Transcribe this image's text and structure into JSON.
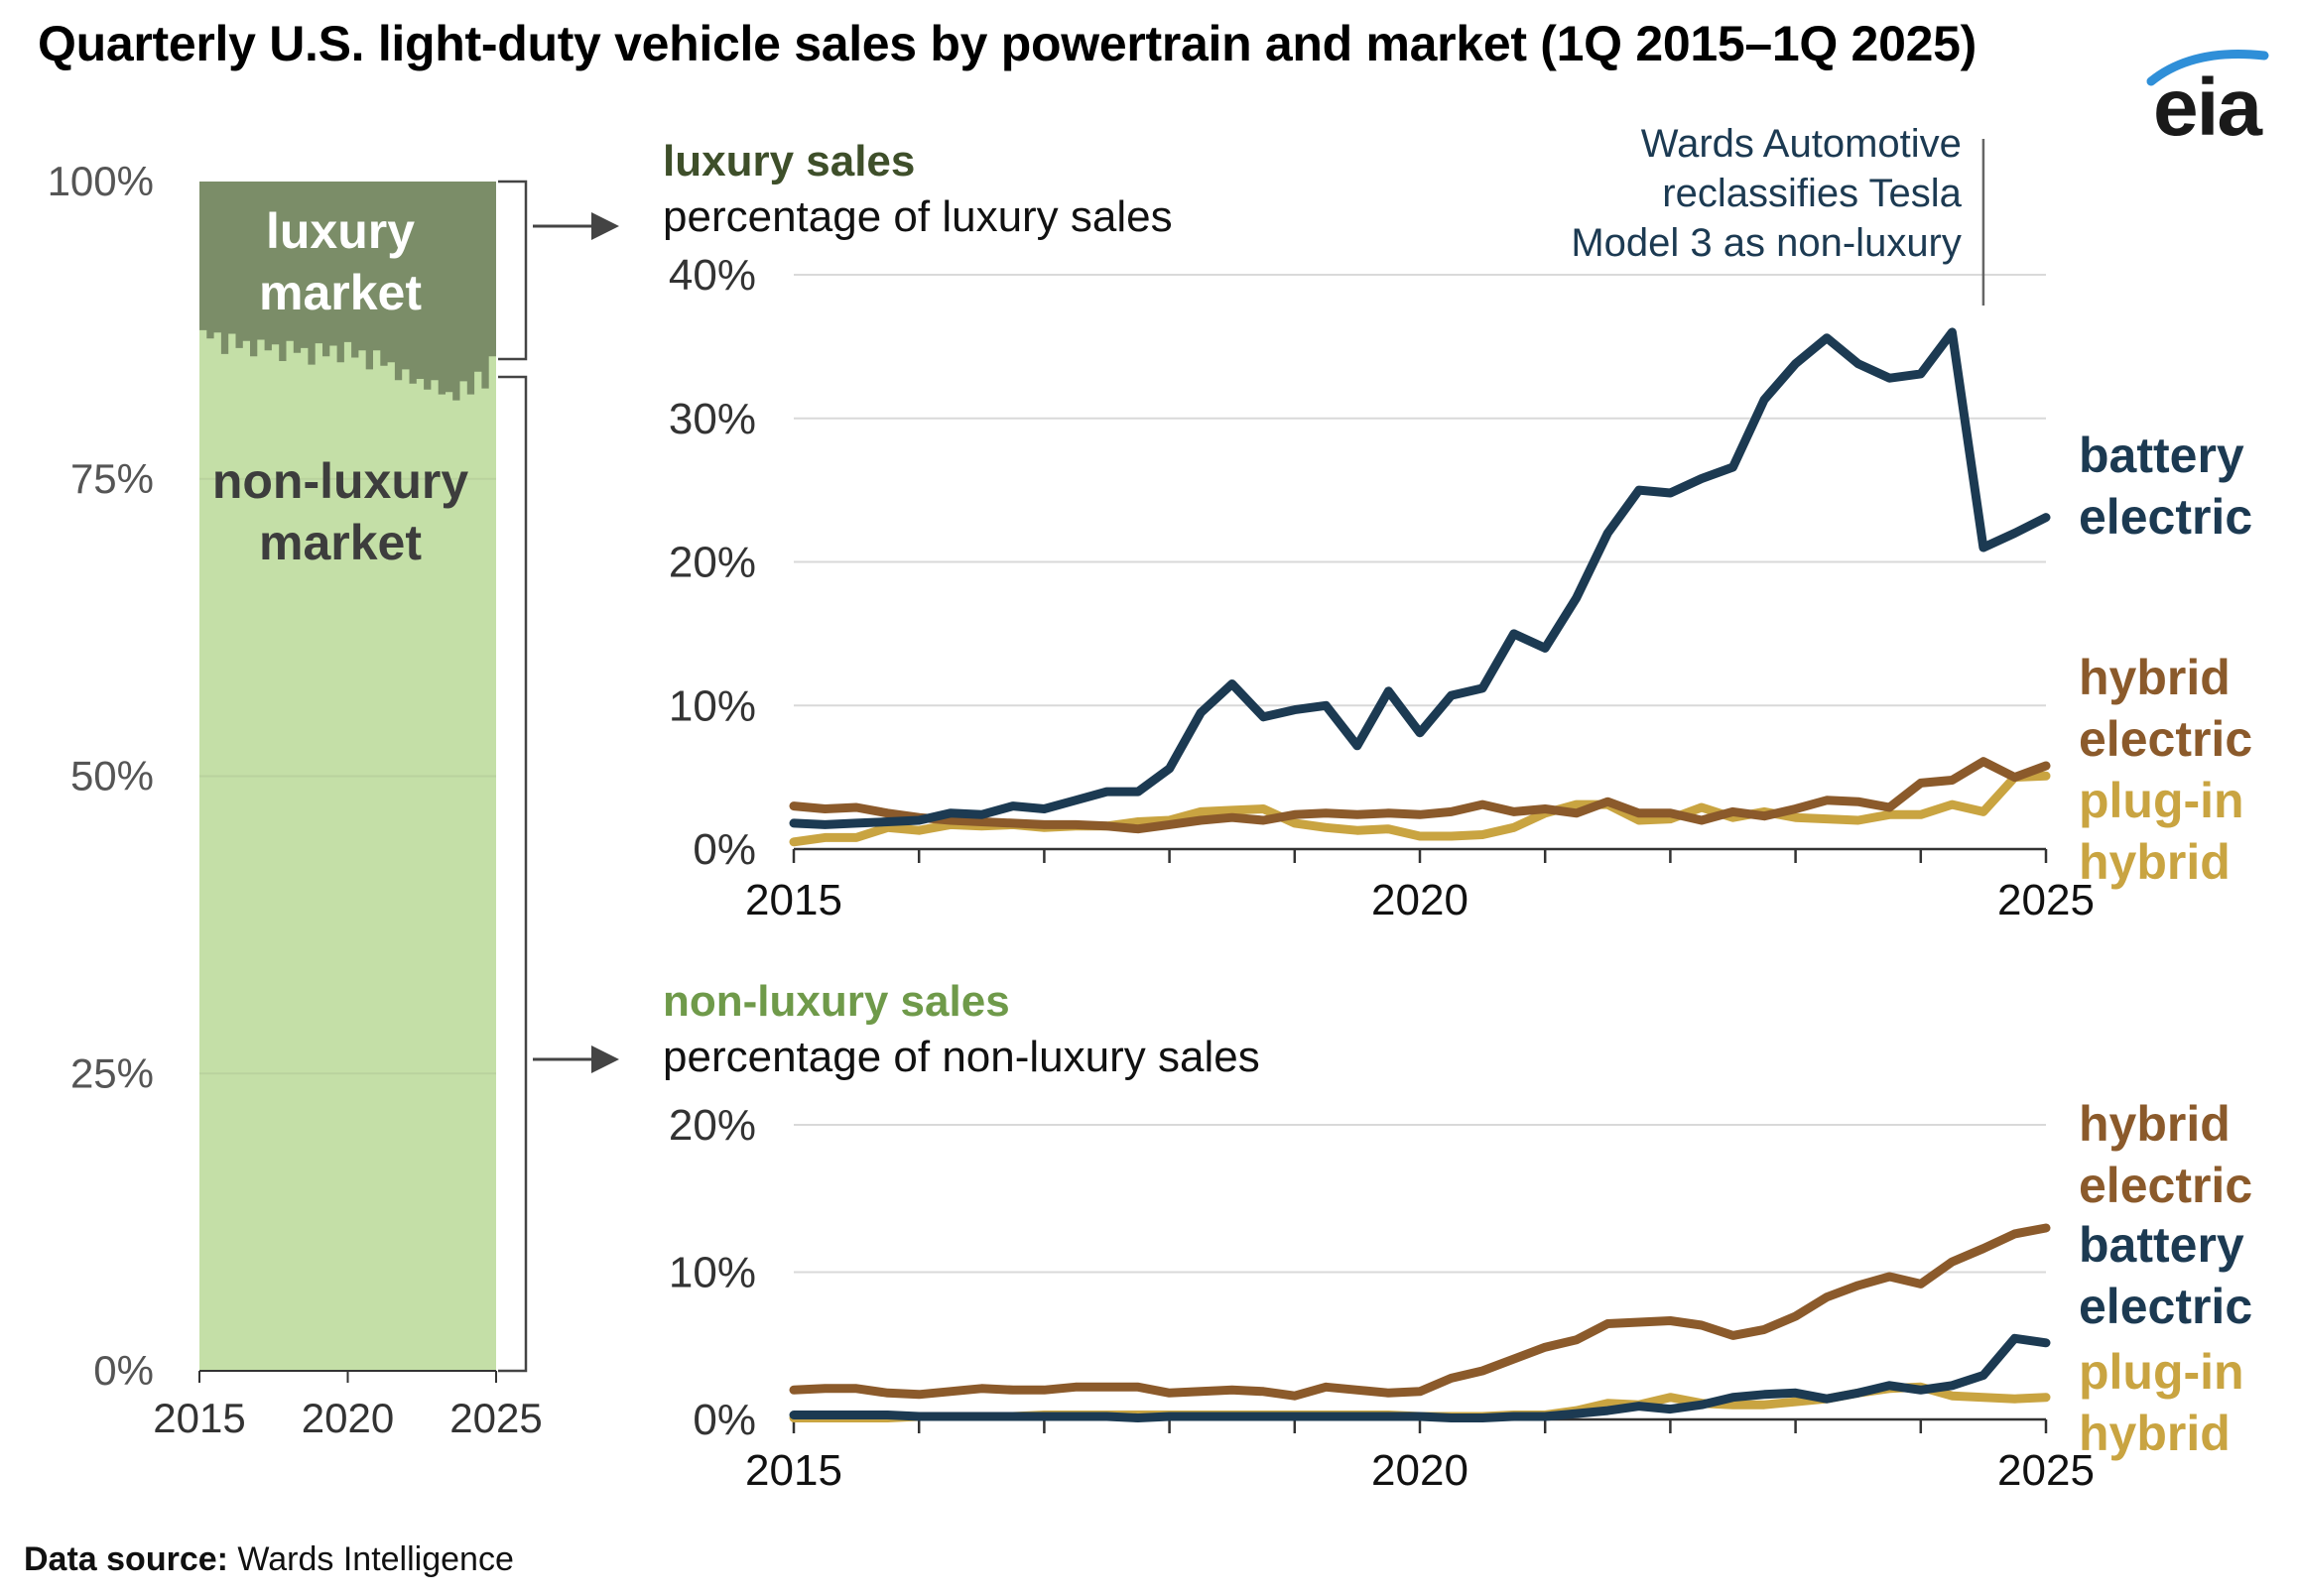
{
  "title": "Quarterly U.S. light-duty vehicle sales by powertrain and market (1Q 2015–1Q 2025)",
  "logo_text": "eia",
  "source_label": "Data source:",
  "source_value": "Wards Intelligence",
  "colors": {
    "luxury_area": "#7b8d68",
    "nonluxury_area": "#c4dfa7",
    "luxury_title": "#3e4f2a",
    "nonluxury_title": "#6f9a4a",
    "battery_electric": "#1c3a52",
    "hybrid_electric": "#8b5a2b",
    "plugin_hybrid": "#c9a441",
    "grid": "#d9d9d9",
    "axis_text": "#555555",
    "annotation_text": "#1c3a52",
    "logo_arc": "#2f8fd8"
  },
  "chart_data": [
    {
      "id": "market_share",
      "type": "area",
      "y_tick_labels": [
        "0%",
        "25%",
        "50%",
        "75%",
        "100%"
      ],
      "y_ticks": [
        0,
        25,
        50,
        75,
        100
      ],
      "ylim": [
        0,
        100
      ],
      "x_tick_labels": [
        "2015",
        "2020",
        "2025"
      ],
      "x_ticks": [
        2015,
        2020,
        2025
      ],
      "xlim": [
        2015,
        2025
      ],
      "area_labels": {
        "luxury": [
          "luxury",
          "market"
        ],
        "nonluxury": [
          "non-luxury",
          "market"
        ]
      },
      "x": [
        2015.0,
        2015.25,
        2015.5,
        2015.75,
        2016.0,
        2016.25,
        2016.5,
        2016.75,
        2017.0,
        2017.25,
        2017.5,
        2017.75,
        2018.0,
        2018.25,
        2018.5,
        2018.75,
        2019.0,
        2019.25,
        2019.5,
        2019.75,
        2020.0,
        2020.25,
        2020.5,
        2020.75,
        2021.0,
        2021.25,
        2021.5,
        2021.75,
        2022.0,
        2022.25,
        2022.5,
        2022.75,
        2023.0,
        2023.25,
        2023.5,
        2023.75,
        2024.0,
        2024.25,
        2024.5,
        2024.75,
        2025.0
      ],
      "series": [
        {
          "name": "non-luxury market",
          "values": [
            87.5,
            86.8,
            87.3,
            85.5,
            87.2,
            86.0,
            86.6,
            85.3,
            86.7,
            85.8,
            86.3,
            84.9,
            86.6,
            85.6,
            86.0,
            84.6,
            86.4,
            85.3,
            86.2,
            84.8,
            86.5,
            85.2,
            85.8,
            84.2,
            85.8,
            84.5,
            84.8,
            83.3,
            84.2,
            83.0,
            83.4,
            82.5,
            83.3,
            82.1,
            82.3,
            81.6,
            83.2,
            82.1,
            84.0,
            82.6,
            85.3
          ]
        }
      ]
    },
    {
      "id": "luxury_sales",
      "type": "line",
      "panel_title": "luxury sales",
      "panel_subtitle": "percentage of luxury sales",
      "y_tick_labels": [
        "0%",
        "10%",
        "20%",
        "30%",
        "40%"
      ],
      "y_ticks": [
        0,
        10,
        20,
        30,
        40
      ],
      "ylim": [
        0,
        40
      ],
      "x_tick_labels": [
        "2015",
        "2020",
        "2025"
      ],
      "x_ticks": [
        2015,
        2020,
        2025
      ],
      "xlim": [
        2015,
        2025
      ],
      "annotation": [
        "Wards Automotive",
        "reclassifies Tesla",
        "Model 3 as non-luxury"
      ],
      "annotation_x": 2024.5,
      "x": [
        2015.0,
        2015.25,
        2015.5,
        2015.75,
        2016.0,
        2016.25,
        2016.5,
        2016.75,
        2017.0,
        2017.25,
        2017.5,
        2017.75,
        2018.0,
        2018.25,
        2018.5,
        2018.75,
        2019.0,
        2019.25,
        2019.5,
        2019.75,
        2020.0,
        2020.25,
        2020.5,
        2020.75,
        2021.0,
        2021.25,
        2021.5,
        2021.75,
        2022.0,
        2022.25,
        2022.5,
        2022.75,
        2023.0,
        2023.25,
        2023.5,
        2023.75,
        2024.0,
        2024.25,
        2024.5,
        2024.75,
        2025.0
      ],
      "series": [
        {
          "name": "battery electric",
          "label_lines": [
            "battery",
            "electric"
          ],
          "color": "#1c3a52",
          "values": [
            1.8,
            1.7,
            1.8,
            1.9,
            2.0,
            2.5,
            2.4,
            3.0,
            2.8,
            3.4,
            4.0,
            4.0,
            5.6,
            9.5,
            11.5,
            9.2,
            9.7,
            10.0,
            7.2,
            11.0,
            8.1,
            10.7,
            11.2,
            15.0,
            14.0,
            17.5,
            22.0,
            25.0,
            24.8,
            25.8,
            26.6,
            31.3,
            33.8,
            35.6,
            33.8,
            32.8,
            33.1,
            36.0,
            21.0,
            22.0,
            23.1
          ]
        },
        {
          "name": "hybrid electric",
          "label_lines": [
            "hybrid",
            "electric"
          ],
          "color": "#8b5a2b",
          "values": [
            3.0,
            2.8,
            2.9,
            2.5,
            2.2,
            2.0,
            1.9,
            1.8,
            1.7,
            1.7,
            1.6,
            1.4,
            1.7,
            2.0,
            2.2,
            2.0,
            2.4,
            2.5,
            2.4,
            2.5,
            2.4,
            2.6,
            3.1,
            2.6,
            2.8,
            2.5,
            3.3,
            2.5,
            2.5,
            2.0,
            2.6,
            2.3,
            2.8,
            3.4,
            3.3,
            2.9,
            4.6,
            4.8,
            6.1,
            5.0,
            5.8
          ]
        },
        {
          "name": "plug-in hybrid",
          "label_lines": [
            "plug-in",
            "hybrid"
          ],
          "color": "#c9a441",
          "values": [
            0.5,
            0.8,
            0.8,
            1.5,
            1.3,
            1.7,
            1.6,
            1.7,
            1.5,
            1.6,
            1.6,
            1.9,
            2.0,
            2.6,
            2.7,
            2.8,
            1.8,
            1.5,
            1.3,
            1.4,
            0.9,
            0.9,
            1.0,
            1.5,
            2.5,
            3.1,
            3.1,
            2.0,
            2.1,
            2.9,
            2.2,
            2.6,
            2.2,
            2.1,
            2.0,
            2.4,
            2.4,
            3.1,
            2.6,
            5.0,
            5.1
          ]
        }
      ]
    },
    {
      "id": "nonluxury_sales",
      "type": "line",
      "panel_title": "non-luxury sales",
      "panel_subtitle": "percentage of non-luxury sales",
      "y_tick_labels": [
        "0%",
        "10%",
        "20%"
      ],
      "y_ticks": [
        0,
        10,
        20
      ],
      "ylim": [
        0,
        20
      ],
      "x_tick_labels": [
        "2015",
        "2020",
        "2025"
      ],
      "x_ticks": [
        2015,
        2020,
        2025
      ],
      "xlim": [
        2015,
        2025
      ],
      "x": [
        2015.0,
        2015.25,
        2015.5,
        2015.75,
        2016.0,
        2016.25,
        2016.5,
        2016.75,
        2017.0,
        2017.25,
        2017.5,
        2017.75,
        2018.0,
        2018.25,
        2018.5,
        2018.75,
        2019.0,
        2019.25,
        2019.5,
        2019.75,
        2020.0,
        2020.25,
        2020.5,
        2020.75,
        2021.0,
        2021.25,
        2021.5,
        2021.75,
        2022.0,
        2022.25,
        2022.5,
        2022.75,
        2023.0,
        2023.25,
        2023.5,
        2023.75,
        2024.0,
        2024.25,
        2024.5,
        2024.75,
        2025.0
      ],
      "series": [
        {
          "name": "hybrid electric",
          "label_lines": [
            "hybrid",
            "electric"
          ],
          "color": "#8b5a2b",
          "values": [
            2.0,
            2.1,
            2.1,
            1.8,
            1.7,
            1.9,
            2.1,
            2.0,
            2.0,
            2.2,
            2.2,
            2.2,
            1.8,
            1.9,
            2.0,
            1.9,
            1.6,
            2.2,
            2.0,
            1.8,
            1.9,
            2.8,
            3.3,
            4.1,
            4.9,
            5.4,
            6.5,
            6.6,
            6.7,
            6.4,
            5.7,
            6.1,
            7.0,
            8.3,
            9.1,
            9.7,
            9.2,
            10.7,
            11.6,
            12.6,
            13.0
          ]
        },
        {
          "name": "battery electric",
          "label_lines": [
            "battery",
            "electric"
          ],
          "color": "#1c3a52",
          "values": [
            0.3,
            0.3,
            0.3,
            0.3,
            0.2,
            0.2,
            0.2,
            0.2,
            0.2,
            0.2,
            0.2,
            0.1,
            0.2,
            0.2,
            0.2,
            0.2,
            0.2,
            0.2,
            0.2,
            0.2,
            0.2,
            0.1,
            0.1,
            0.2,
            0.2,
            0.4,
            0.6,
            0.9,
            0.7,
            1.0,
            1.5,
            1.7,
            1.8,
            1.4,
            1.8,
            2.3,
            2.0,
            2.3,
            3.0,
            5.5,
            5.2
          ]
        },
        {
          "name": "plug-in hybrid",
          "label_lines": [
            "plug-in",
            "hybrid"
          ],
          "color": "#c9a441",
          "values": [
            0.1,
            0.1,
            0.1,
            0.1,
            0.2,
            0.2,
            0.2,
            0.2,
            0.3,
            0.3,
            0.3,
            0.3,
            0.3,
            0.3,
            0.3,
            0.3,
            0.3,
            0.3,
            0.3,
            0.3,
            0.2,
            0.2,
            0.2,
            0.3,
            0.3,
            0.6,
            1.1,
            1.0,
            1.5,
            1.1,
            1.0,
            1.0,
            1.2,
            1.4,
            1.8,
            2.1,
            2.2,
            1.6,
            1.5,
            1.4,
            1.5
          ]
        }
      ]
    }
  ]
}
